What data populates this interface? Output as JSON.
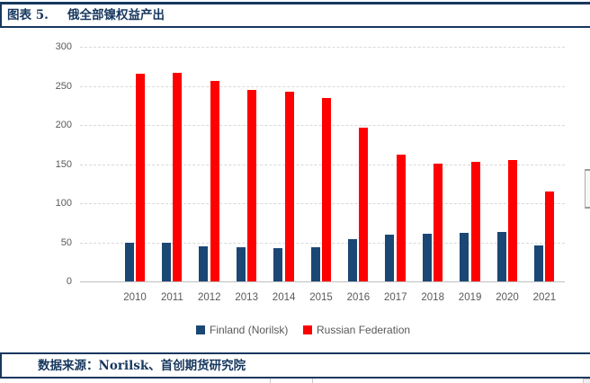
{
  "header": {
    "figure_label": "图表 5.",
    "title": "俄全部镍权益产出"
  },
  "footer": {
    "source": "数据来源：Norilsk、首创期货研究院"
  },
  "colors": {
    "navy": "#17375E",
    "finland_bar": "#1B4775",
    "russia_bar": "#FF0000",
    "gridline": "#D9D9D9",
    "axis": "#BFBFBF",
    "tick_text": "#595959"
  },
  "chart_data": {
    "type": "bar",
    "title": "俄全部镍权益产出",
    "categories": [
      "2010",
      "2011",
      "2012",
      "2013",
      "2014",
      "2015",
      "2016",
      "2017",
      "2018",
      "2019",
      "2020",
      "2021"
    ],
    "series": [
      {
        "name": "Finland (Norilsk)",
        "color": "#1B4775",
        "values": [
          50,
          49,
          45,
          44,
          43,
          44,
          54,
          60,
          61,
          62,
          63,
          46
        ]
      },
      {
        "name": "Russian Federation",
        "color": "#FF0000",
        "values": [
          265,
          267,
          256,
          245,
          242,
          234,
          196,
          162,
          151,
          153,
          155,
          115
        ]
      }
    ],
    "ylim": [
      0,
      300
    ],
    "y_ticks": [
      0,
      50,
      100,
      150,
      200,
      250,
      300
    ],
    "xlabel": "",
    "ylabel": "",
    "grid": "horizontal-dashed",
    "legend_position": "bottom"
  }
}
